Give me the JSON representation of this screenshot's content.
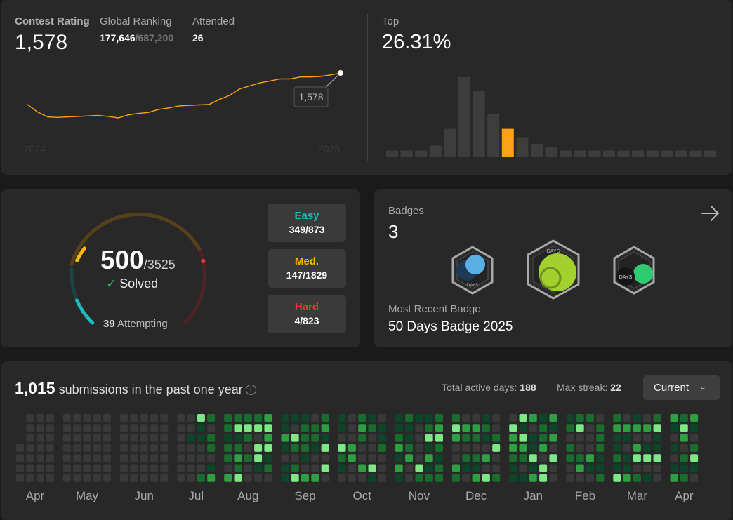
{
  "contest": {
    "rating_label": "Contest Rating",
    "rating": "1,578",
    "ranking_label": "Global Ranking",
    "ranking": "177,646",
    "ranking_total": "/687,200",
    "attended_label": "Attended",
    "attended": "26",
    "top_label": "Top",
    "top_percent": "26.31%",
    "chart": {
      "x_start_label": "2024",
      "x_end_label": "2025",
      "tooltip": "1,578",
      "line_color": "#ffa116",
      "ratings": [
        1515,
        1500,
        1490,
        1489,
        1490,
        1491,
        1492,
        1493,
        1491,
        1488,
        1494,
        1497,
        1499,
        1505,
        1508,
        1512,
        1513,
        1514,
        1515,
        1525,
        1533,
        1546,
        1552,
        1558,
        1562,
        1566,
        1566,
        1570,
        1570,
        1571,
        1574,
        1578
      ]
    },
    "histogram": {
      "highlight_color": "#ffa116",
      "bar_color": "#3d3d3d",
      "highlight_index": 8,
      "values": [
        4,
        4,
        4,
        7,
        17,
        48,
        40,
        26,
        17,
        12,
        8,
        6,
        4,
        4,
        4,
        4,
        4,
        4,
        4,
        4,
        4,
        4,
        4
      ]
    }
  },
  "problems": {
    "solved": "500",
    "total": "/3525",
    "solved_label": "Solved",
    "attempting_count": "39",
    "attempting_label": "Attempting",
    "easy": {
      "label": "Easy",
      "count": "349/873",
      "color": "#1cbaba"
    },
    "medium": {
      "label": "Med.",
      "count": "147/1829",
      "color": "#ffb700"
    },
    "hard": {
      "label": "Hard",
      "count": "4/823",
      "color": "#f63737"
    }
  },
  "badges": {
    "label": "Badges",
    "count": "3",
    "items": [
      {
        "icon": "days-badge-2025-icon",
        "text": "DAYS"
      },
      {
        "icon": "days-badge-lime-icon",
        "text": "DAYS"
      },
      {
        "icon": "days-badge-green-icon",
        "text": "DAYS"
      }
    ],
    "recent_label": "Most Recent Badge",
    "recent_name": "50 Days Badge 2025"
  },
  "calendar": {
    "count": "1,015",
    "text": " submissions in the past one year",
    "active_label": "Total active days: ",
    "active_value": "188",
    "streak_label": "Max streak: ",
    "streak_value": "22",
    "select_value": "Current",
    "months": [
      "Apr",
      "May",
      "Jun",
      "Jul",
      "Aug",
      "Sep",
      "Oct",
      "Nov",
      "Dec",
      "Jan",
      "Feb",
      "Mar",
      "Apr"
    ],
    "colors": [
      "#393939",
      "#0e4429",
      "#196c2e",
      "#2ea043",
      "#7ee787"
    ]
  }
}
